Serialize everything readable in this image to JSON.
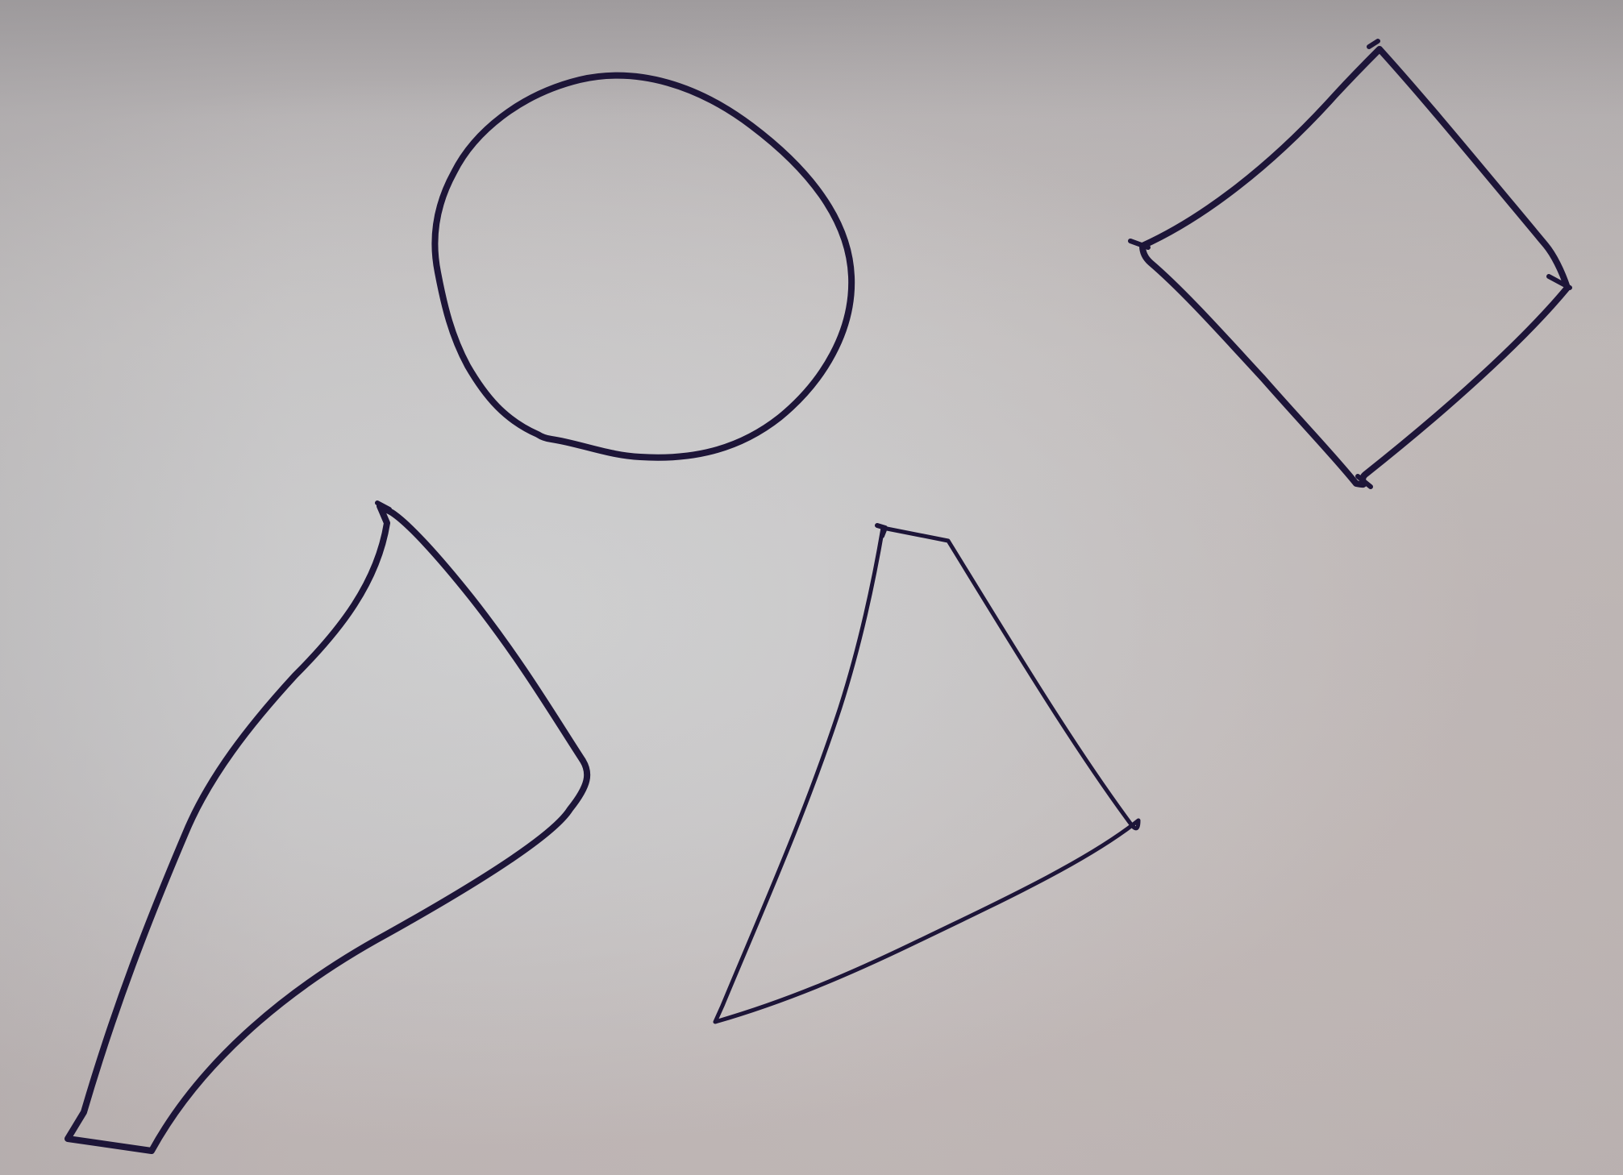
{
  "scene": {
    "surface_color": "#c4bfbe",
    "ink_color": "#1d1538",
    "shapes": [
      "circle",
      "diamond",
      "irregular-quadrilateral",
      "irregular-quadrilateral"
    ]
  }
}
